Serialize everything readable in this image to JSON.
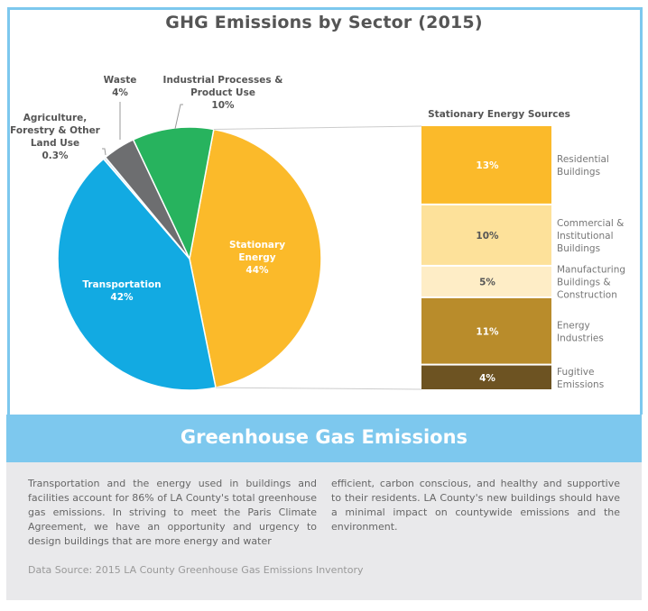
{
  "chart_data": [
    {
      "type": "pie",
      "title": "GHG Emissions by Sector (2015)",
      "slices": [
        {
          "label": "Stationary Energy",
          "value": 44,
          "display": "44%",
          "color": "#fbba2a"
        },
        {
          "label": "Transportation",
          "value": 42,
          "display": "42%",
          "color": "#12aae2"
        },
        {
          "label": "Agriculture, Forestry & Other Land Use",
          "value": 0.3,
          "display": "0.3%",
          "color": "#cfe9f6"
        },
        {
          "label": "Waste",
          "value": 4,
          "display": "4%",
          "color": "#6d6e70"
        },
        {
          "label": "Industrial Processes & Product Use",
          "value": 10,
          "display": "10%",
          "color": "#27b35e"
        }
      ]
    },
    {
      "type": "bar",
      "stacked": true,
      "title": "Stationary Energy Sources",
      "categories": [
        "Residential Buildings",
        "Commercial & Institutional Buildings",
        "Manufacturing Buildings & Construction",
        "Energy Industries",
        "Fugitive Emissions"
      ],
      "values": [
        13,
        10,
        5,
        11,
        4
      ],
      "labels": [
        "13%",
        "10%",
        "5%",
        "11%",
        "4%"
      ],
      "colors": [
        "#fbba2a",
        "#fde19a",
        "#feedc6",
        "#b98c2b",
        "#6d5322"
      ]
    }
  ],
  "banner": "Greenhouse Gas Emissions",
  "body": {
    "col1": "Transportation and the energy used in buildings and facilities account for 86% of LA County's total greenhouse gas emissions. In striving to meet the Paris Climate Agreement, we have an opportunity and urgency to design buildings that are more energy and water",
    "col2": "efficient, carbon conscious, and healthy and supportive to their residents. LA County's new buildings should have a minimal impact on countywide emissions and the environment.",
    "source": "Data Source: 2015 LA County Greenhouse Gas Emissions Inventory"
  },
  "colors": {
    "frame": "#7dc8ee",
    "textbox": "#e9e9eb"
  }
}
